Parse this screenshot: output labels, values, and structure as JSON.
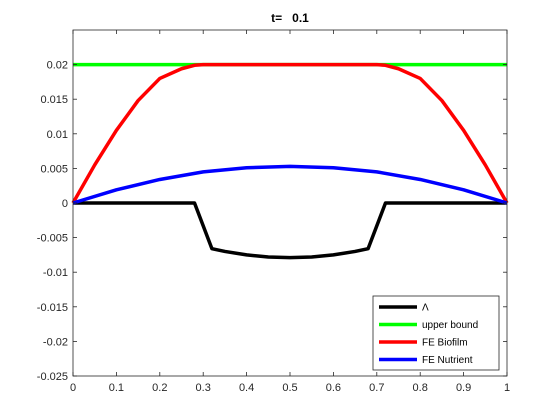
{
  "chart_data": {
    "type": "line",
    "title": "t=   0.1",
    "xlabel": "",
    "ylabel": "",
    "xlim": [
      0,
      1
    ],
    "ylim": [
      -0.025,
      0.025
    ],
    "xticks": [
      0,
      0.1,
      0.2,
      0.3,
      0.4,
      0.5,
      0.6,
      0.7,
      0.8,
      0.9,
      1
    ],
    "xtick_labels": [
      "0",
      "0.1",
      "0.2",
      "0.3",
      "0.4",
      "0.5",
      "0.6",
      "0.7",
      "0.8",
      "0.9",
      "1"
    ],
    "yticks": [
      -0.025,
      -0.02,
      -0.015,
      -0.01,
      -0.005,
      0,
      0.005,
      0.01,
      0.015,
      0.02
    ],
    "ytick_labels": [
      "-0.025",
      "-0.02",
      "-0.015",
      "-0.01",
      "-0.005",
      "0",
      "0.005",
      "0.01",
      "0.015",
      "0.02"
    ],
    "grid": false,
    "legend_position": "bottom-right",
    "series": [
      {
        "name": "Λ",
        "color": "#000000",
        "x": [
          0,
          0.05,
          0.1,
          0.15,
          0.2,
          0.25,
          0.28,
          0.32,
          0.35,
          0.4,
          0.45,
          0.5,
          0.55,
          0.6,
          0.65,
          0.68,
          0.72,
          0.75,
          0.8,
          0.85,
          0.9,
          0.95,
          1
        ],
        "y": [
          0,
          0,
          0,
          0,
          0,
          0,
          0,
          -0.0066,
          -0.007,
          -0.0075,
          -0.0078,
          -0.0079,
          -0.0078,
          -0.0075,
          -0.007,
          -0.0066,
          0,
          0,
          0,
          0,
          0,
          0,
          0
        ]
      },
      {
        "name": "upper bound",
        "color": "#00ff00",
        "x": [
          0,
          1
        ],
        "y": [
          0.02,
          0.02
        ]
      },
      {
        "name": "FE Biofilm",
        "color": "#ff0000",
        "x": [
          0,
          0.05,
          0.1,
          0.15,
          0.2,
          0.25,
          0.28,
          0.3,
          0.32,
          0.4,
          0.5,
          0.6,
          0.68,
          0.7,
          0.72,
          0.75,
          0.8,
          0.85,
          0.9,
          0.95,
          1
        ],
        "y": [
          0,
          0.0055,
          0.0105,
          0.0148,
          0.018,
          0.0194,
          0.0199,
          0.02,
          0.02,
          0.02,
          0.02,
          0.02,
          0.02,
          0.02,
          0.0199,
          0.0194,
          0.018,
          0.0148,
          0.0105,
          0.0055,
          0
        ]
      },
      {
        "name": "FE Nutrient",
        "color": "#0000ff",
        "x": [
          0,
          0.1,
          0.2,
          0.3,
          0.4,
          0.5,
          0.6,
          0.7,
          0.8,
          0.9,
          1
        ],
        "y": [
          0,
          0.0019,
          0.0034,
          0.0045,
          0.0051,
          0.0053,
          0.0051,
          0.0045,
          0.0034,
          0.0019,
          0
        ]
      }
    ]
  }
}
